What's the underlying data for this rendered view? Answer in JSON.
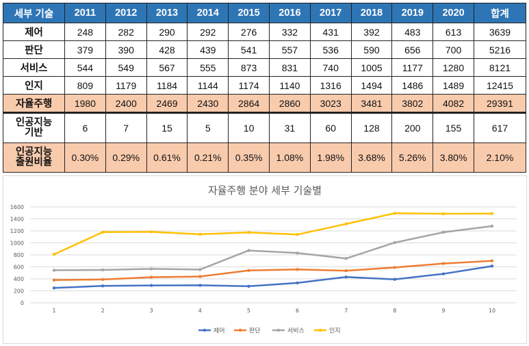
{
  "table": {
    "corner_label": "세부 기술",
    "years": [
      "2011",
      "2012",
      "2013",
      "2014",
      "2015",
      "2016",
      "2017",
      "2018",
      "2019",
      "2020"
    ],
    "total_label": "합계",
    "rows": [
      {
        "label": "제어",
        "values": [
          "248",
          "282",
          "290",
          "292",
          "276",
          "332",
          "431",
          "392",
          "483",
          "613"
        ],
        "total": "3639",
        "style": "normal"
      },
      {
        "label": "판단",
        "values": [
          "379",
          "390",
          "428",
          "439",
          "541",
          "557",
          "536",
          "590",
          "656",
          "700"
        ],
        "total": "5216",
        "style": "normal"
      },
      {
        "label": "서비스",
        "values": [
          "544",
          "549",
          "567",
          "555",
          "873",
          "831",
          "740",
          "1005",
          "1177",
          "1280"
        ],
        "total": "8121",
        "style": "normal"
      },
      {
        "label": "인지",
        "values": [
          "809",
          "1179",
          "1184",
          "1144",
          "1174",
          "1140",
          "1316",
          "1494",
          "1486",
          "1489"
        ],
        "total": "12415",
        "style": "normal"
      },
      {
        "label": "자율주행",
        "values": [
          "1980",
          "2400",
          "2469",
          "2430",
          "2864",
          "2860",
          "3023",
          "3481",
          "3802",
          "4082"
        ],
        "total": "29391",
        "style": "highlight"
      },
      {
        "label": "인공지능\n기반",
        "values": [
          "6",
          "7",
          "15",
          "5",
          "10",
          "31",
          "60",
          "128",
          "200",
          "155"
        ],
        "total": "617",
        "style": "ai"
      },
      {
        "label": "인공지능\n출원비율",
        "values": [
          "0.30%",
          "0.29%",
          "0.61%",
          "0.21%",
          "0.35%",
          "1.08%",
          "1.98%",
          "3.68%",
          "5.26%",
          "3.80%"
        ],
        "total": "2.10%",
        "style": "ratio"
      }
    ]
  },
  "chart_data": {
    "type": "line",
    "title": "자율주행 분야 세부 기술별",
    "x": [
      1,
      2,
      3,
      4,
      5,
      6,
      7,
      8,
      9,
      10
    ],
    "x_tick_labels": [
      "1",
      "2",
      "3",
      "4",
      "5",
      "6",
      "7",
      "8",
      "9",
      "10"
    ],
    "y_tick_labels": [
      "0",
      "200",
      "400",
      "600",
      "800",
      "1000",
      "1200",
      "1400",
      "1600"
    ],
    "ylim": [
      0,
      1600
    ],
    "y_step": 200,
    "grid": true,
    "legend_position": "bottom",
    "series": [
      {
        "name": "제어",
        "color": "#4472c4",
        "values": [
          248,
          282,
          290,
          292,
          276,
          332,
          431,
          392,
          483,
          613
        ]
      },
      {
        "name": "판단",
        "color": "#ed7d31",
        "values": [
          379,
          390,
          428,
          439,
          541,
          557,
          536,
          590,
          656,
          700
        ]
      },
      {
        "name": "서비스",
        "color": "#a5a5a5",
        "values": [
          544,
          549,
          567,
          555,
          873,
          831,
          740,
          1005,
          1177,
          1280
        ]
      },
      {
        "name": "인지",
        "color": "#ffc000",
        "values": [
          809,
          1179,
          1184,
          1144,
          1174,
          1140,
          1316,
          1494,
          1486,
          1489
        ]
      }
    ]
  }
}
